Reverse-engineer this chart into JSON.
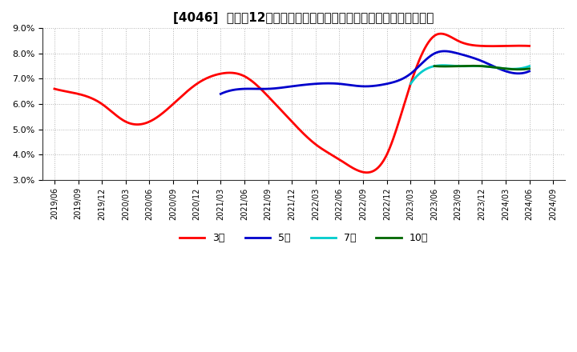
{
  "title": "[4046]  売上高12か月移動合計の対前年同期増減率の標準偏差の推移",
  "ylim": [
    0.03,
    0.09
  ],
  "yticks": [
    0.03,
    0.04,
    0.05,
    0.06,
    0.07,
    0.08,
    0.09
  ],
  "ytick_labels": [
    "3.0%",
    "4.0%",
    "5.0%",
    "6.0%",
    "7.0%",
    "8.0%",
    "9.0%"
  ],
  "background_color": "#ffffff",
  "plot_bg_color": "#ffffff",
  "grid_color": "#aaaaaa",
  "series": {
    "3年": {
      "color": "#ff0000",
      "points": [
        [
          "2019/06",
          0.066
        ],
        [
          "2019/09",
          0.064
        ],
        [
          "2019/12",
          0.06
        ],
        [
          "2020/03",
          0.053
        ],
        [
          "2020/06",
          0.053
        ],
        [
          "2020/09",
          0.06
        ],
        [
          "2020/12",
          0.068
        ],
        [
          "2021/03",
          0.072
        ],
        [
          "2021/06",
          0.071
        ],
        [
          "2021/09",
          0.063
        ],
        [
          "2021/12",
          0.053
        ],
        [
          "2022/03",
          0.044
        ],
        [
          "2022/06",
          0.038
        ],
        [
          "2022/09",
          0.033
        ],
        [
          "2022/12",
          0.04
        ],
        [
          "2023/03",
          0.068
        ],
        [
          "2023/06",
          0.087
        ],
        [
          "2023/09",
          0.085
        ],
        [
          "2023/12",
          0.083
        ],
        [
          "2024/03",
          0.083
        ],
        [
          "2024/06",
          0.083
        ]
      ]
    },
    "5年": {
      "color": "#0000cc",
      "points": [
        [
          "2021/03",
          0.064
        ],
        [
          "2021/06",
          0.066
        ],
        [
          "2021/09",
          0.066
        ],
        [
          "2021/12",
          0.067
        ],
        [
          "2022/03",
          0.068
        ],
        [
          "2022/06",
          0.068
        ],
        [
          "2022/09",
          0.067
        ],
        [
          "2022/12",
          0.068
        ],
        [
          "2023/03",
          0.072
        ],
        [
          "2023/06",
          0.08
        ],
        [
          "2023/09",
          0.08
        ],
        [
          "2023/12",
          0.077
        ],
        [
          "2024/03",
          0.073
        ],
        [
          "2024/06",
          0.073
        ]
      ]
    },
    "7年": {
      "color": "#00cccc",
      "points": [
        [
          "2023/03",
          0.068
        ],
        [
          "2023/06",
          0.075
        ],
        [
          "2023/09",
          0.075
        ],
        [
          "2023/12",
          0.075
        ],
        [
          "2024/03",
          0.074
        ],
        [
          "2024/06",
          0.075
        ]
      ]
    },
    "10年": {
      "color": "#006600",
      "points": [
        [
          "2023/06",
          0.075
        ],
        [
          "2023/09",
          0.075
        ],
        [
          "2023/12",
          0.075
        ],
        [
          "2024/03",
          0.074
        ],
        [
          "2024/06",
          0.074
        ]
      ]
    }
  },
  "x_ticks": [
    "2019/06",
    "2019/09",
    "2019/12",
    "2020/03",
    "2020/06",
    "2020/09",
    "2020/12",
    "2021/03",
    "2021/06",
    "2021/09",
    "2021/12",
    "2022/03",
    "2022/06",
    "2022/09",
    "2022/12",
    "2023/03",
    "2023/06",
    "2023/09",
    "2023/12",
    "2024/03",
    "2024/06",
    "2024/09"
  ],
  "legend_entries": [
    "3年",
    "5年",
    "7年",
    "10年"
  ],
  "legend_colors": [
    "#ff0000",
    "#0000cc",
    "#00cccc",
    "#006600"
  ]
}
